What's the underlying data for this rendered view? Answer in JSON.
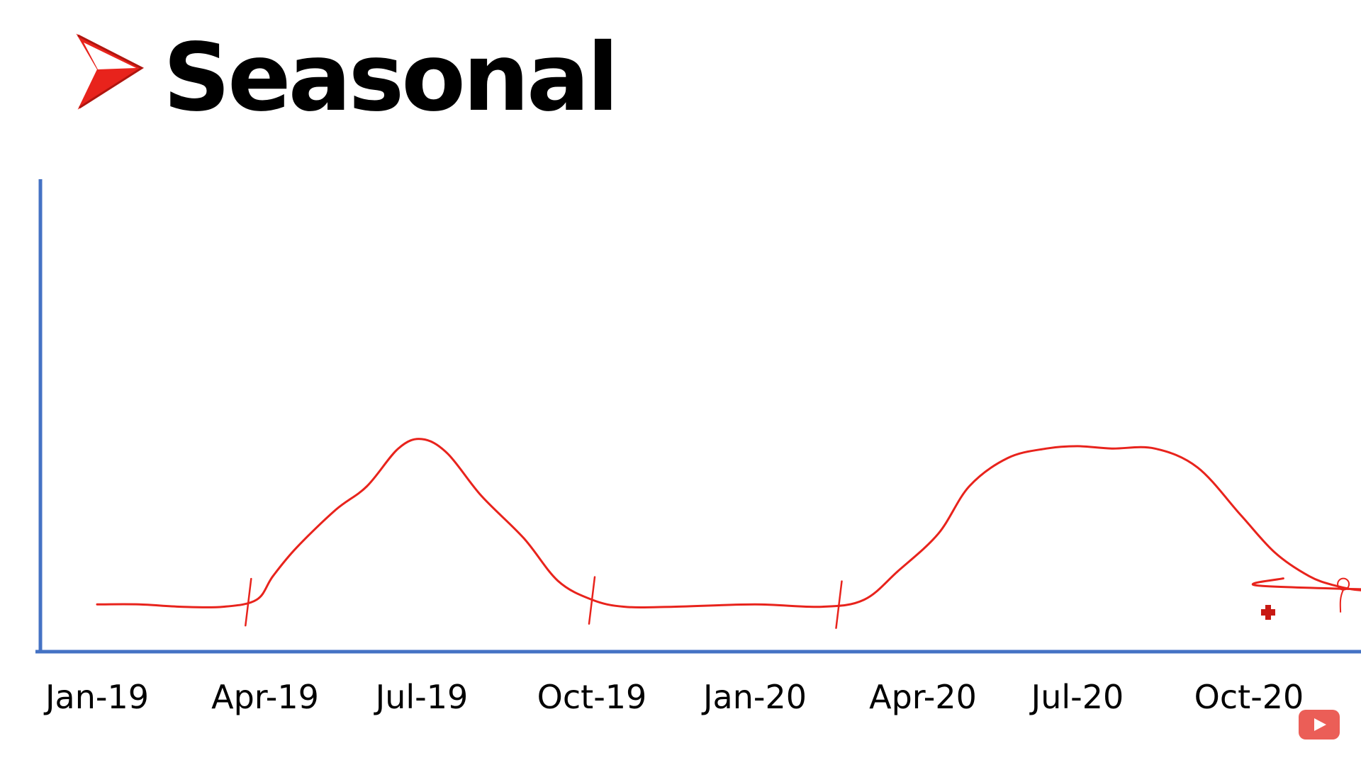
{
  "slide": {
    "title": "Seasonal",
    "bullet_icon": "red-arrowhead-icon",
    "accent_color": "#e8231c",
    "axis_color": "#4472c4"
  },
  "chart_data": {
    "type": "line",
    "title": "Seasonal",
    "xlabel": "",
    "ylabel": "",
    "grid": false,
    "legend": "none",
    "categories": [
      "Jan-19",
      "Apr-19",
      "Jul-19",
      "Oct-19",
      "Jan-20",
      "Apr-20",
      "Jul-20",
      "Oct-20"
    ],
    "ylim": [
      0,
      100
    ],
    "series": [
      {
        "color": "#e8231c",
        "points": [
          {
            "x": 0.0,
            "y": 10
          },
          {
            "x": 0.25,
            "y": 10
          },
          {
            "x": 0.5,
            "y": 9.5
          },
          {
            "x": 0.75,
            "y": 9.5
          },
          {
            "x": 0.95,
            "y": 11
          },
          {
            "x": 1.05,
            "y": 16
          },
          {
            "x": 1.2,
            "y": 22
          },
          {
            "x": 1.45,
            "y": 30
          },
          {
            "x": 1.65,
            "y": 35
          },
          {
            "x": 1.85,
            "y": 43
          },
          {
            "x": 2.0,
            "y": 45
          },
          {
            "x": 2.15,
            "y": 42
          },
          {
            "x": 2.35,
            "y": 33
          },
          {
            "x": 2.6,
            "y": 24
          },
          {
            "x": 2.8,
            "y": 15
          },
          {
            "x": 3.0,
            "y": 11
          },
          {
            "x": 3.2,
            "y": 9.5
          },
          {
            "x": 3.5,
            "y": 9.5
          },
          {
            "x": 4.0,
            "y": 10
          },
          {
            "x": 4.4,
            "y": 9.5
          },
          {
            "x": 4.65,
            "y": 11
          },
          {
            "x": 4.85,
            "y": 17
          },
          {
            "x": 5.1,
            "y": 25
          },
          {
            "x": 5.3,
            "y": 35
          },
          {
            "x": 5.55,
            "y": 41
          },
          {
            "x": 5.8,
            "y": 43
          },
          {
            "x": 6.0,
            "y": 43.5
          },
          {
            "x": 6.2,
            "y": 43
          },
          {
            "x": 6.45,
            "y": 43
          },
          {
            "x": 6.7,
            "y": 39
          },
          {
            "x": 6.95,
            "y": 29
          },
          {
            "x": 7.15,
            "y": 21
          },
          {
            "x": 7.35,
            "y": 16
          },
          {
            "x": 7.5,
            "y": 14
          },
          {
            "x": 7.65,
            "y": 13
          },
          {
            "x": 7.85,
            "y": 13
          },
          {
            "x": 8.05,
            "y": 14
          },
          {
            "x": 8.2,
            "y": 15.5
          }
        ]
      }
    ],
    "annotations": [
      {
        "type": "tick-mark",
        "x": 0.9
      },
      {
        "type": "tick-mark",
        "x": 3.0
      },
      {
        "type": "tick-mark",
        "x": 4.5
      },
      {
        "type": "circle-marker",
        "x": 7.55,
        "y": 14
      }
    ]
  }
}
